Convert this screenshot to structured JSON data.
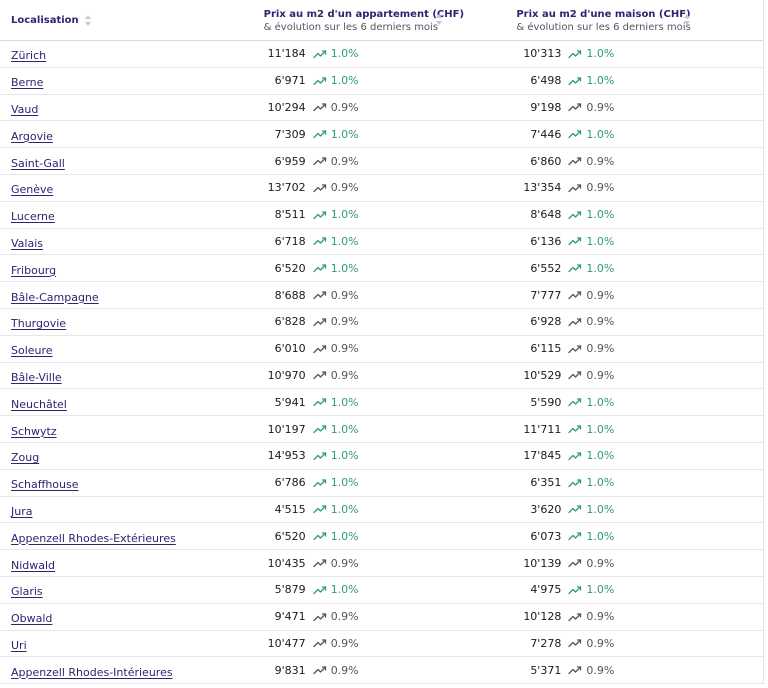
{
  "header": {
    "location_label": "Localisation",
    "apt_title": "Prix au m2 d'un appartement (CHF)",
    "apt_subtitle": "& évolution sur les 6 derniers mois",
    "house_title": "Prix au m2 d'une maison (CHF)",
    "house_subtitle": "& évolution sur les 6 derniers mois"
  },
  "colors": {
    "up": "#2e9e6e",
    "flat": "#555560",
    "link": "#2e2470"
  },
  "rows": [
    {
      "name": "Zürich",
      "apt": "11'184",
      "apt_trend": "1.0%",
      "apt_up": true,
      "house": "10'313",
      "house_trend": "1.0%",
      "house_up": true
    },
    {
      "name": "Berne",
      "apt": "6'971",
      "apt_trend": "1.0%",
      "apt_up": true,
      "house": "6'498",
      "house_trend": "1.0%",
      "house_up": true
    },
    {
      "name": "Vaud",
      "apt": "10'294",
      "apt_trend": "0.9%",
      "apt_up": false,
      "house": "9'198",
      "house_trend": "0.9%",
      "house_up": false
    },
    {
      "name": "Argovie",
      "apt": "7'309",
      "apt_trend": "1.0%",
      "apt_up": true,
      "house": "7'446",
      "house_trend": "1.0%",
      "house_up": true
    },
    {
      "name": "Saint-Gall",
      "apt": "6'959",
      "apt_trend": "0.9%",
      "apt_up": false,
      "house": "6'860",
      "house_trend": "0.9%",
      "house_up": false
    },
    {
      "name": "Genève",
      "apt": "13'702",
      "apt_trend": "0.9%",
      "apt_up": false,
      "house": "13'354",
      "house_trend": "0.9%",
      "house_up": false
    },
    {
      "name": "Lucerne",
      "apt": "8'511",
      "apt_trend": "1.0%",
      "apt_up": true,
      "house": "8'648",
      "house_trend": "1.0%",
      "house_up": true
    },
    {
      "name": "Valais",
      "apt": "6'718",
      "apt_trend": "1.0%",
      "apt_up": true,
      "house": "6'136",
      "house_trend": "1.0%",
      "house_up": true
    },
    {
      "name": "Fribourg",
      "apt": "6'520",
      "apt_trend": "1.0%",
      "apt_up": true,
      "house": "6'552",
      "house_trend": "1.0%",
      "house_up": true
    },
    {
      "name": "Bâle-Campagne",
      "apt": "8'688",
      "apt_trend": "0.9%",
      "apt_up": false,
      "house": "7'777",
      "house_trend": "0.9%",
      "house_up": false
    },
    {
      "name": "Thurgovie",
      "apt": "6'828",
      "apt_trend": "0.9%",
      "apt_up": false,
      "house": "6'928",
      "house_trend": "0.9%",
      "house_up": false
    },
    {
      "name": "Soleure",
      "apt": "6'010",
      "apt_trend": "0.9%",
      "apt_up": false,
      "house": "6'115",
      "house_trend": "0.9%",
      "house_up": false
    },
    {
      "name": "Bâle-Ville",
      "apt": "10'970",
      "apt_trend": "0.9%",
      "apt_up": false,
      "house": "10'529",
      "house_trend": "0.9%",
      "house_up": false
    },
    {
      "name": "Neuchâtel",
      "apt": "5'941",
      "apt_trend": "1.0%",
      "apt_up": true,
      "house": "5'590",
      "house_trend": "1.0%",
      "house_up": true
    },
    {
      "name": "Schwytz",
      "apt": "10'197",
      "apt_trend": "1.0%",
      "apt_up": true,
      "house": "11'711",
      "house_trend": "1.0%",
      "house_up": true
    },
    {
      "name": "Zoug",
      "apt": "14'953",
      "apt_trend": "1.0%",
      "apt_up": true,
      "house": "17'845",
      "house_trend": "1.0%",
      "house_up": true
    },
    {
      "name": "Schaffhouse",
      "apt": "6'786",
      "apt_trend": "1.0%",
      "apt_up": true,
      "house": "6'351",
      "house_trend": "1.0%",
      "house_up": true
    },
    {
      "name": "Jura",
      "apt": "4'515",
      "apt_trend": "1.0%",
      "apt_up": true,
      "house": "3'620",
      "house_trend": "1.0%",
      "house_up": true
    },
    {
      "name": "Appenzell Rhodes-Extérieures",
      "apt": "6'520",
      "apt_trend": "1.0%",
      "apt_up": true,
      "house": "6'073",
      "house_trend": "1.0%",
      "house_up": true
    },
    {
      "name": "Nidwald",
      "apt": "10'435",
      "apt_trend": "0.9%",
      "apt_up": false,
      "house": "10'139",
      "house_trend": "0.9%",
      "house_up": false
    },
    {
      "name": "Glaris",
      "apt": "5'879",
      "apt_trend": "1.0%",
      "apt_up": true,
      "house": "4'975",
      "house_trend": "1.0%",
      "house_up": true
    },
    {
      "name": "Obwald",
      "apt": "9'471",
      "apt_trend": "0.9%",
      "apt_up": false,
      "house": "10'128",
      "house_trend": "0.9%",
      "house_up": false
    },
    {
      "name": "Uri",
      "apt": "10'477",
      "apt_trend": "0.9%",
      "apt_up": false,
      "house": "7'278",
      "house_trend": "0.9%",
      "house_up": false
    },
    {
      "name": "Appenzell Rhodes-Intérieures",
      "apt": "9'831",
      "apt_trend": "0.9%",
      "apt_up": false,
      "house": "5'371",
      "house_trend": "0.9%",
      "house_up": false
    }
  ]
}
